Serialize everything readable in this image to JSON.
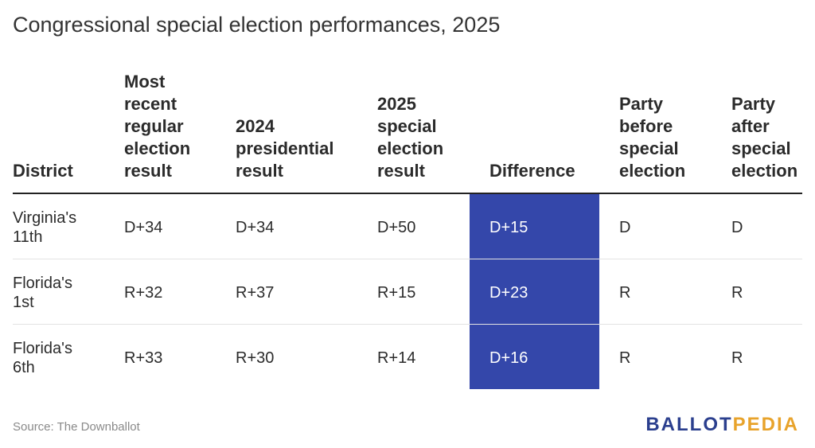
{
  "title": "Congressional special election performances, 2025",
  "chart_data": {
    "type": "table",
    "columns": [
      "District",
      "Most recent regular election result",
      "2024 presidential result",
      "2025 special election result",
      "Difference",
      "Party before special election",
      "Party after special election"
    ],
    "header_display": [
      "District",
      "Most\nrecent\nregular\nelection\nresult",
      "2024\npresidential\nresult",
      "2025\nspecial\nelection\nresult",
      "Difference",
      "Party\nbefore\nspecial\nelection",
      "Party\nafter\nspecial\nelection"
    ],
    "rows": [
      [
        "Virginia's\n11th",
        "D+34",
        "D+34",
        "D+50",
        "D+15",
        "D",
        "D"
      ],
      [
        "Florida's\n1st",
        "R+32",
        "R+37",
        "R+15",
        "D+23",
        "R",
        "R"
      ],
      [
        "Florida's\n6th",
        "R+33",
        "R+30",
        "R+14",
        "D+16",
        "R",
        "R"
      ]
    ],
    "highlight_column": "Difference",
    "highlight_color": "#3447aa"
  },
  "source": "Source: The Downballot",
  "logo": {
    "part1": "BALLOT",
    "part2": "PEDIA"
  }
}
